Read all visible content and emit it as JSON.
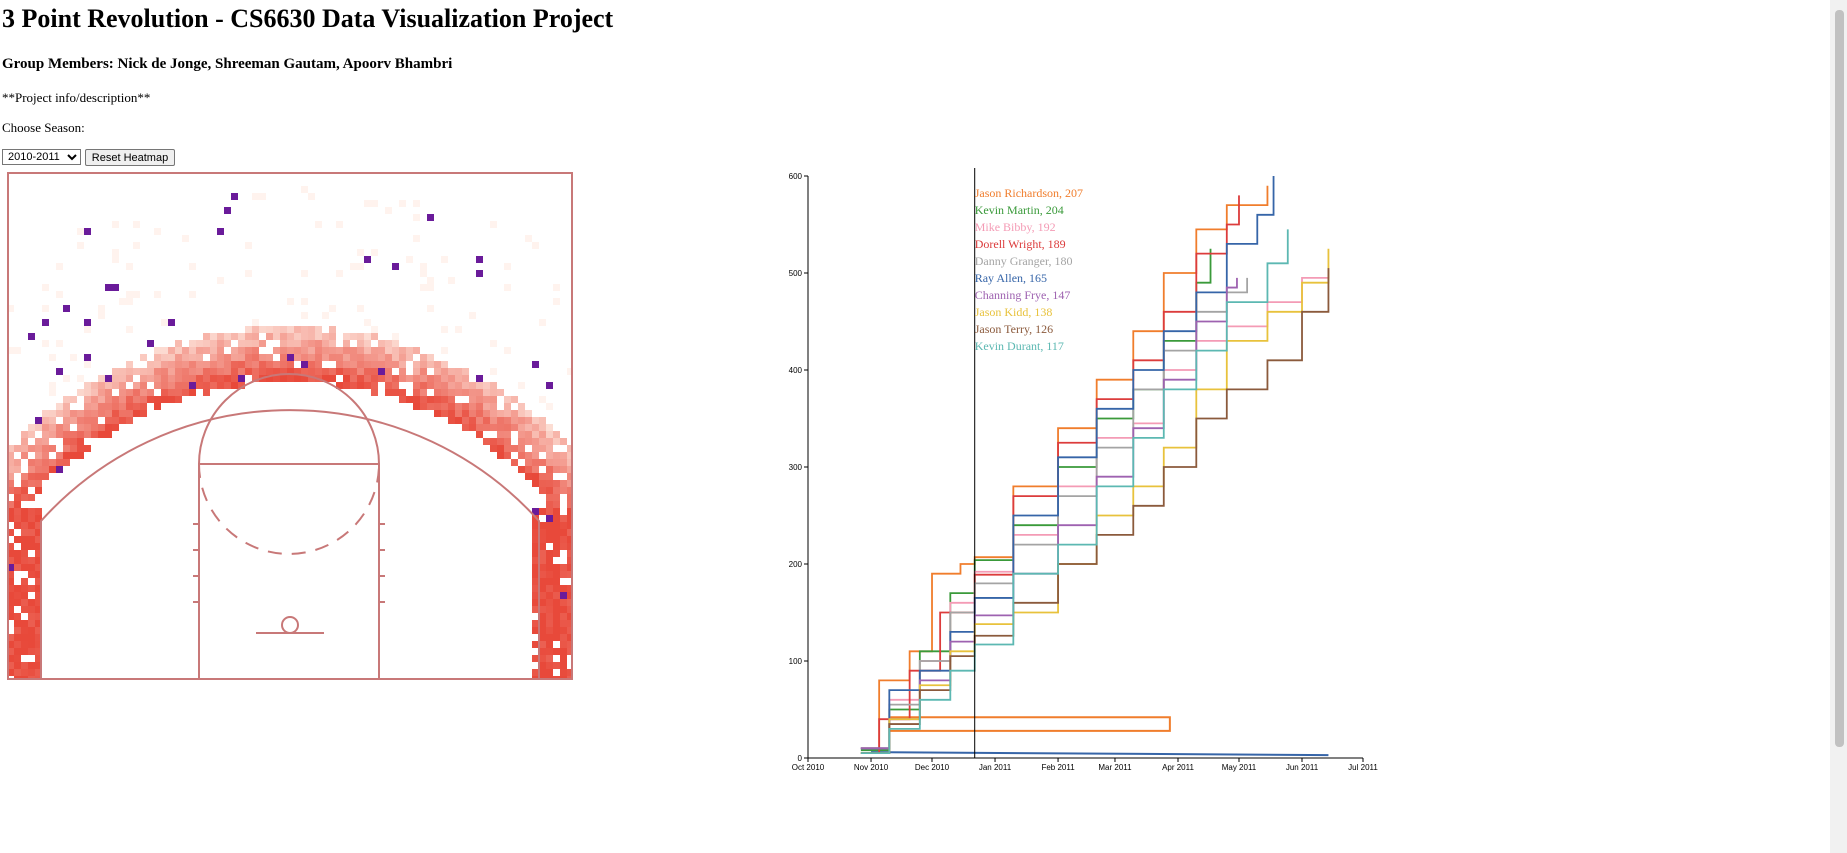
{
  "header": {
    "title": "3 Point Revolution - CS6630 Data Visualization Project",
    "members": "Group Members: Nick de Jonge, Shreeman Gautam, Apoorv Bhambri",
    "description": "**Project info/description**",
    "choose_season": "Choose Season:"
  },
  "controls": {
    "season_selected": "2010-2011",
    "season_options": [
      "2010-2011"
    ],
    "reset_label": "Reset Heatmap"
  },
  "colors": {
    "heat_low": "#fee8df",
    "heat_high": "#e8493a",
    "outlier": "#6a1b9a",
    "court_line": "#c87878"
  },
  "chart_data": {
    "type": "line",
    "xlabel": "",
    "ylabel": "",
    "ylim": [
      0,
      600
    ],
    "xlim": [
      "2010-10-01",
      "2011-07-01"
    ],
    "x_ticks": [
      "Oct 2010",
      "Nov 2010",
      "Dec 2010",
      "Jan 2011",
      "Feb 2011",
      "Mar 2011",
      "Apr 2011",
      "May 2011",
      "Jun 2011",
      "Jul 2011"
    ],
    "y_ticks": [
      0,
      100,
      200,
      300,
      400,
      500,
      600
    ],
    "hover_line_date": "2010-12-22",
    "series": [
      {
        "name": "Jason Richardson",
        "hover_value": 207,
        "color": "#f07d2c",
        "points": [
          [
            "2010-10-27",
            10
          ],
          [
            "2010-11-05",
            80
          ],
          [
            "2010-11-20",
            110
          ],
          [
            "2010-12-01",
            190
          ],
          [
            "2010-12-15",
            200
          ],
          [
            "2010-12-22",
            207
          ],
          [
            "2011-01-10",
            280
          ],
          [
            "2011-02-01",
            340
          ],
          [
            "2011-02-20",
            390
          ],
          [
            "2011-03-10",
            440
          ],
          [
            "2011-03-25",
            500
          ],
          [
            "2011-04-10",
            545
          ],
          [
            "2011-04-25",
            570
          ],
          [
            "2011-05-15",
            590
          ]
        ]
      },
      {
        "name": "Kevin Martin",
        "hover_value": 204,
        "color": "#3a9a3a",
        "points": [
          [
            "2010-10-27",
            8
          ],
          [
            "2010-11-10",
            50
          ],
          [
            "2010-11-25",
            110
          ],
          [
            "2010-12-10",
            170
          ],
          [
            "2010-12-22",
            204
          ],
          [
            "2011-01-10",
            240
          ],
          [
            "2011-02-01",
            300
          ],
          [
            "2011-02-20",
            350
          ],
          [
            "2011-03-10",
            380
          ],
          [
            "2011-03-25",
            430
          ],
          [
            "2011-04-10",
            490
          ],
          [
            "2011-04-17",
            525
          ]
        ]
      },
      {
        "name": "Mike Bibby",
        "hover_value": 192,
        "color": "#f49bb5",
        "points": [
          [
            "2010-10-27",
            10
          ],
          [
            "2010-11-10",
            60
          ],
          [
            "2010-11-25",
            100
          ],
          [
            "2010-12-10",
            160
          ],
          [
            "2010-12-22",
            192
          ],
          [
            "2011-01-10",
            230
          ],
          [
            "2011-02-01",
            280
          ],
          [
            "2011-02-20",
            330
          ],
          [
            "2011-03-10",
            345
          ],
          [
            "2011-03-25",
            400
          ],
          [
            "2011-04-10",
            430
          ],
          [
            "2011-04-25",
            445
          ],
          [
            "2011-05-15",
            470
          ],
          [
            "2011-06-01",
            495
          ],
          [
            "2011-06-14",
            505
          ]
        ]
      },
      {
        "name": "Dorell Wright",
        "hover_value": 189,
        "color": "#dc3c3c",
        "points": [
          [
            "2010-10-27",
            5
          ],
          [
            "2010-11-05",
            40
          ],
          [
            "2010-11-20",
            90
          ],
          [
            "2010-12-05",
            150
          ],
          [
            "2010-12-22",
            189
          ],
          [
            "2011-01-10",
            270
          ],
          [
            "2011-02-01",
            325
          ],
          [
            "2011-02-20",
            370
          ],
          [
            "2011-03-10",
            410
          ],
          [
            "2011-03-25",
            460
          ],
          [
            "2011-04-10",
            520
          ],
          [
            "2011-04-25",
            550
          ],
          [
            "2011-05-01",
            580
          ]
        ]
      },
      {
        "name": "Danny Granger",
        "hover_value": 180,
        "color": "#a4a4a4",
        "points": [
          [
            "2010-10-27",
            10
          ],
          [
            "2010-11-10",
            55
          ],
          [
            "2010-11-25",
            100
          ],
          [
            "2010-12-10",
            150
          ],
          [
            "2010-12-22",
            180
          ],
          [
            "2011-01-10",
            220
          ],
          [
            "2011-02-01",
            270
          ],
          [
            "2011-02-20",
            320
          ],
          [
            "2011-03-10",
            380
          ],
          [
            "2011-03-25",
            420
          ],
          [
            "2011-04-10",
            460
          ],
          [
            "2011-04-25",
            480
          ],
          [
            "2011-05-05",
            495
          ]
        ]
      },
      {
        "name": "Ray Allen",
        "hover_value": 165,
        "color": "#3665a8",
        "points": [
          [
            "2010-10-27",
            10
          ],
          [
            "2010-11-10",
            70
          ],
          [
            "2010-11-25",
            90
          ],
          [
            "2010-12-10",
            130
          ],
          [
            "2010-12-22",
            165
          ],
          [
            "2011-01-10",
            250
          ],
          [
            "2011-02-01",
            310
          ],
          [
            "2011-02-20",
            360
          ],
          [
            "2011-03-10",
            400
          ],
          [
            "2011-03-25",
            440
          ],
          [
            "2011-04-10",
            480
          ],
          [
            "2011-04-25",
            530
          ],
          [
            "2011-05-10",
            560
          ],
          [
            "2011-05-18",
            600
          ]
        ]
      },
      {
        "name": "Channing Frye",
        "hover_value": 147,
        "color": "#9e62b0",
        "points": [
          [
            "2010-10-27",
            10
          ],
          [
            "2010-11-10",
            40
          ],
          [
            "2010-11-25",
            80
          ],
          [
            "2010-12-10",
            120
          ],
          [
            "2010-12-22",
            147
          ],
          [
            "2011-01-10",
            190
          ],
          [
            "2011-02-01",
            240
          ],
          [
            "2011-02-20",
            290
          ],
          [
            "2011-03-10",
            340
          ],
          [
            "2011-03-25",
            390
          ],
          [
            "2011-04-10",
            450
          ],
          [
            "2011-04-25",
            485
          ],
          [
            "2011-04-30",
            495
          ]
        ]
      },
      {
        "name": "Jason Kidd",
        "hover_value": 138,
        "color": "#e8c23c",
        "points": [
          [
            "2010-10-27",
            5
          ],
          [
            "2010-11-10",
            40
          ],
          [
            "2010-11-25",
            75
          ],
          [
            "2010-12-10",
            110
          ],
          [
            "2010-12-22",
            138
          ],
          [
            "2011-01-10",
            150
          ],
          [
            "2011-02-01",
            200
          ],
          [
            "2011-02-20",
            250
          ],
          [
            "2011-03-10",
            280
          ],
          [
            "2011-03-25",
            320
          ],
          [
            "2011-04-10",
            380
          ],
          [
            "2011-04-25",
            430
          ],
          [
            "2011-05-15",
            460
          ],
          [
            "2011-06-01",
            490
          ],
          [
            "2011-06-14",
            525
          ]
        ]
      },
      {
        "name": "Jason Terry",
        "hover_value": 126,
        "color": "#8b5a3c",
        "points": [
          [
            "2010-10-27",
            5
          ],
          [
            "2010-11-10",
            35
          ],
          [
            "2010-11-25",
            70
          ],
          [
            "2010-12-10",
            105
          ],
          [
            "2010-12-22",
            126
          ],
          [
            "2011-01-10",
            160
          ],
          [
            "2011-02-01",
            200
          ],
          [
            "2011-02-20",
            230
          ],
          [
            "2011-03-10",
            260
          ],
          [
            "2011-03-25",
            300
          ],
          [
            "2011-04-10",
            350
          ],
          [
            "2011-04-25",
            380
          ],
          [
            "2011-05-15",
            410
          ],
          [
            "2011-06-01",
            460
          ],
          [
            "2011-06-14",
            505
          ]
        ]
      },
      {
        "name": "Kevin Durant",
        "hover_value": 117,
        "color": "#5cb8b2",
        "points": [
          [
            "2010-10-27",
            5
          ],
          [
            "2010-11-10",
            30
          ],
          [
            "2010-11-25",
            60
          ],
          [
            "2010-12-10",
            90
          ],
          [
            "2010-12-22",
            117
          ],
          [
            "2011-01-10",
            190
          ],
          [
            "2011-02-01",
            220
          ],
          [
            "2011-02-20",
            280
          ],
          [
            "2011-03-10",
            330
          ],
          [
            "2011-03-25",
            380
          ],
          [
            "2011-04-10",
            420
          ],
          [
            "2011-04-25",
            470
          ],
          [
            "2011-05-15",
            510
          ],
          [
            "2011-05-25",
            545
          ]
        ]
      }
    ],
    "extra_lines": [
      {
        "color": "#f07d2c",
        "points": [
          [
            "2010-11-10",
            42
          ],
          [
            "2011-03-28",
            42
          ],
          [
            "2011-03-28",
            28
          ],
          [
            "2010-11-10",
            28
          ]
        ]
      },
      {
        "color": "#3665a8",
        "points": [
          [
            "2010-11-01",
            6
          ],
          [
            "2011-06-14",
            3
          ]
        ]
      }
    ]
  }
}
